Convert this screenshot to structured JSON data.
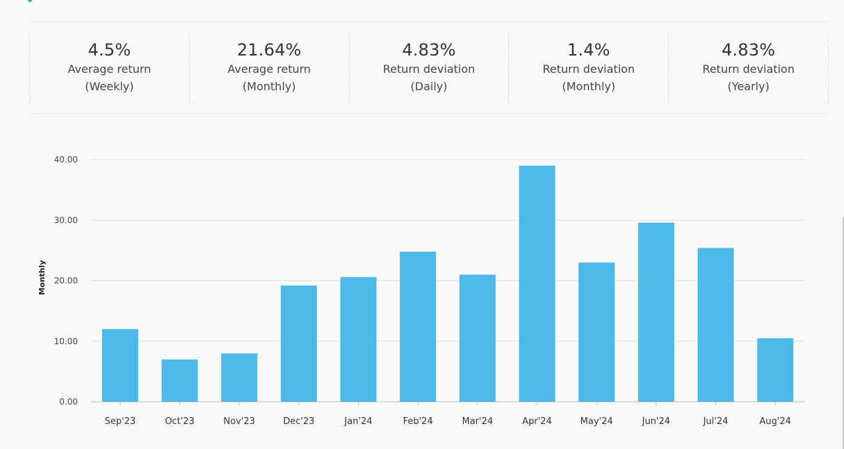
{
  "stats": [
    {
      "value": "4.5%",
      "label": "Average return (Weekly)"
    },
    {
      "value": "21.64%",
      "label": "Average return (Monthly)"
    },
    {
      "value": "4.83%",
      "label": "Return deviation (Daily)"
    },
    {
      "value": "1.4%",
      "label": "Return deviation (Monthly)"
    },
    {
      "value": "4.83%",
      "label": "Return deviation (Yearly)"
    }
  ],
  "chart_data": {
    "type": "bar",
    "categories": [
      "Sep'23",
      "Oct'23",
      "Nov'23",
      "Dec'23",
      "Jan'24",
      "Feb'24",
      "Mar'24",
      "Apr'24",
      "May'24",
      "Jun'24",
      "Jul'24",
      "Aug'24"
    ],
    "values": [
      12.0,
      7.0,
      8.0,
      19.2,
      20.6,
      24.8,
      21.0,
      39.0,
      23.0,
      29.6,
      25.4,
      10.5
    ],
    "xlabel": "",
    "ylabel": "Monthly",
    "ylim": [
      0,
      40
    ],
    "yticks": [
      "0.00",
      "10.00",
      "20.00",
      "30.00",
      "40.00"
    ],
    "grid": true,
    "bar_color": "#4db9ea"
  }
}
